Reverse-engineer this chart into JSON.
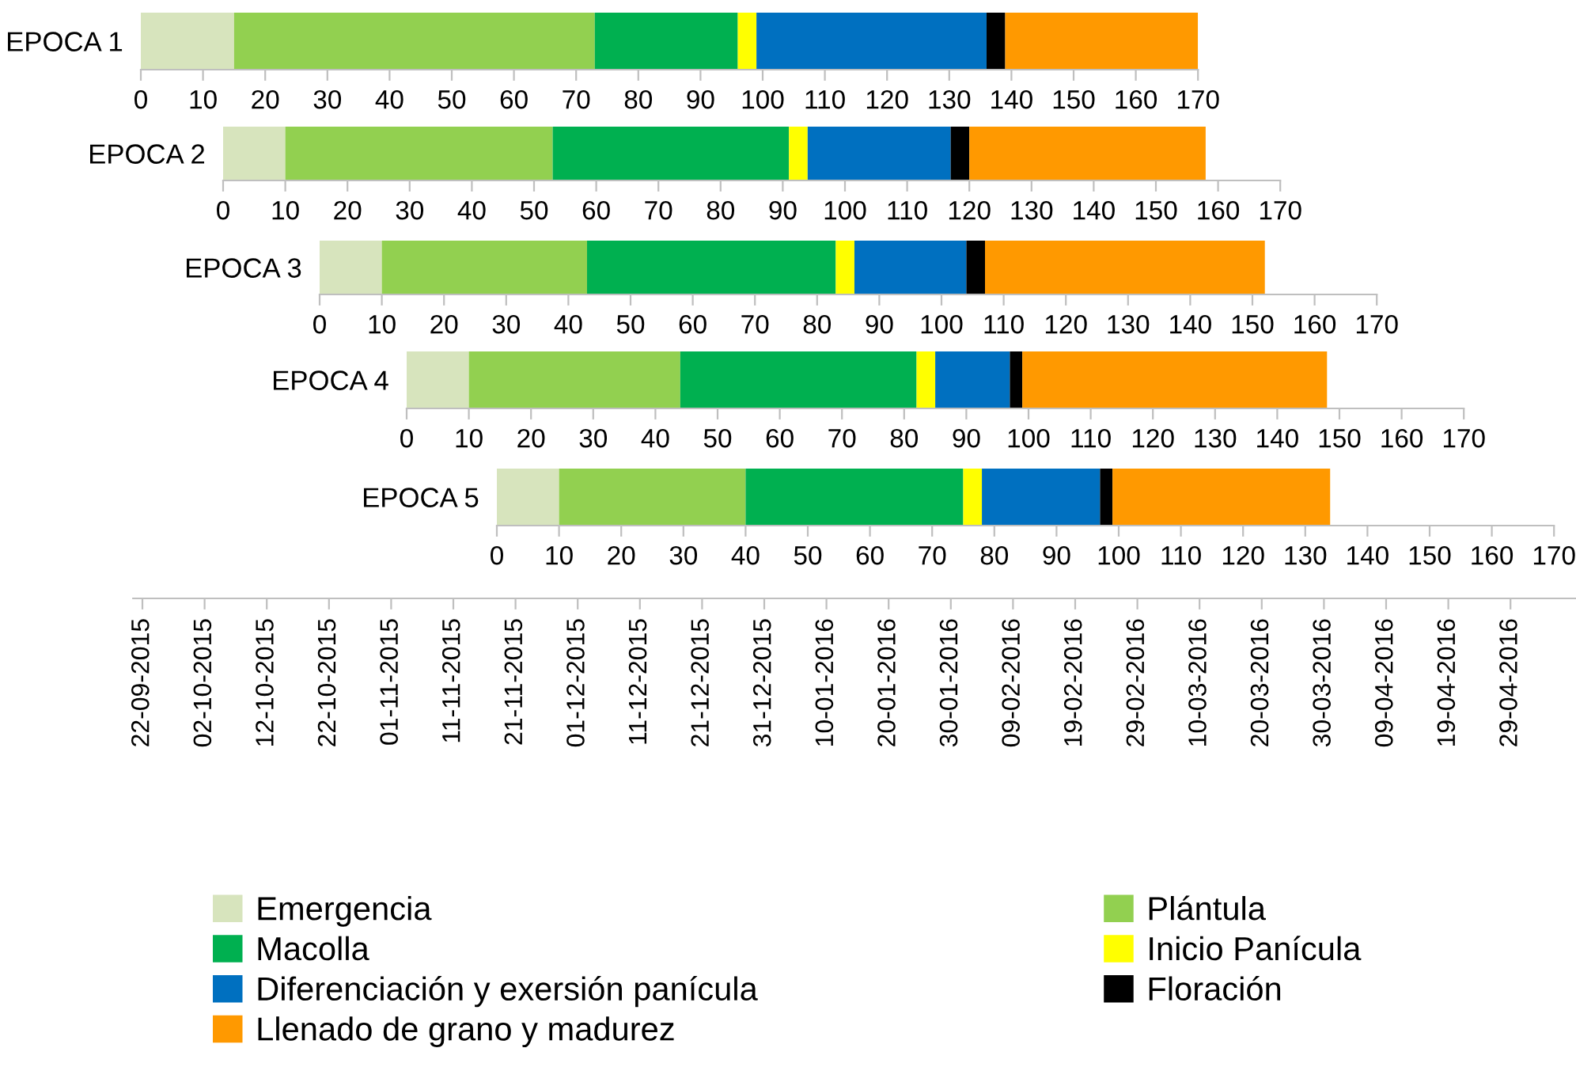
{
  "chart_data": [
    {
      "type": "bar",
      "orientation": "horizontal",
      "stacked": true,
      "categories": [
        "EPOCA 1"
      ],
      "xlim": [
        0,
        170
      ],
      "xticks": [
        0,
        10,
        20,
        30,
        40,
        50,
        60,
        70,
        80,
        90,
        100,
        110,
        120,
        130,
        140,
        150,
        160,
        170
      ],
      "legend": "bottom",
      "series": [
        {
          "name": "Emergencia",
          "color": "#d7e4bd",
          "values": [
            15
          ]
        },
        {
          "name": "Plántula",
          "color": "#92d050",
          "values": [
            58
          ]
        },
        {
          "name": "Macolla",
          "color": "#00b050",
          "values": [
            23
          ]
        },
        {
          "name": "Inicio Panícula",
          "color": "#ffff00",
          "values": [
            3
          ]
        },
        {
          "name": "Diferenciación y exersión panícula",
          "color": "#0070c0",
          "values": [
            37
          ]
        },
        {
          "name": "Floración",
          "color": "#000000",
          "values": [
            3
          ]
        },
        {
          "name": "Llenado de grano y madurez",
          "color": "#ff9900",
          "values": [
            31
          ]
        }
      ]
    },
    {
      "type": "bar",
      "orientation": "horizontal",
      "stacked": true,
      "categories": [
        "EPOCA 2"
      ],
      "xlim": [
        0,
        170
      ],
      "xticks": [
        0,
        10,
        20,
        30,
        40,
        50,
        60,
        70,
        80,
        90,
        100,
        110,
        120,
        130,
        140,
        150,
        160,
        170
      ],
      "series": [
        {
          "color": "#d7e4bd",
          "values": [
            10
          ]
        },
        {
          "color": "#92d050",
          "values": [
            43
          ]
        },
        {
          "color": "#00b050",
          "values": [
            38
          ]
        },
        {
          "color": "#ffff00",
          "values": [
            3
          ]
        },
        {
          "color": "#0070c0",
          "values": [
            23
          ]
        },
        {
          "color": "#000000",
          "values": [
            3
          ]
        },
        {
          "color": "#ff9900",
          "values": [
            38
          ]
        }
      ]
    },
    {
      "type": "bar",
      "orientation": "horizontal",
      "stacked": true,
      "categories": [
        "EPOCA 3"
      ],
      "xlim": [
        0,
        170
      ],
      "xticks": [
        0,
        10,
        20,
        30,
        40,
        50,
        60,
        70,
        80,
        90,
        100,
        110,
        120,
        130,
        140,
        150,
        160,
        170
      ],
      "series": [
        {
          "color": "#d7e4bd",
          "values": [
            10
          ]
        },
        {
          "color": "#92d050",
          "values": [
            33
          ]
        },
        {
          "color": "#00b050",
          "values": [
            40
          ]
        },
        {
          "color": "#ffff00",
          "values": [
            3
          ]
        },
        {
          "color": "#0070c0",
          "values": [
            18
          ]
        },
        {
          "color": "#000000",
          "values": [
            3
          ]
        },
        {
          "color": "#ff9900",
          "values": [
            45
          ]
        }
      ]
    },
    {
      "type": "bar",
      "orientation": "horizontal",
      "stacked": true,
      "categories": [
        "EPOCA 4"
      ],
      "xlim": [
        0,
        170
      ],
      "xticks": [
        0,
        10,
        20,
        30,
        40,
        50,
        60,
        70,
        80,
        90,
        100,
        110,
        120,
        130,
        140,
        150,
        160,
        170
      ],
      "series": [
        {
          "color": "#d7e4bd",
          "values": [
            10
          ]
        },
        {
          "color": "#92d050",
          "values": [
            34
          ]
        },
        {
          "color": "#00b050",
          "values": [
            38
          ]
        },
        {
          "color": "#ffff00",
          "values": [
            3
          ]
        },
        {
          "color": "#0070c0",
          "values": [
            12
          ]
        },
        {
          "color": "#000000",
          "values": [
            2
          ]
        },
        {
          "color": "#ff9900",
          "values": [
            49
          ]
        }
      ]
    },
    {
      "type": "bar",
      "orientation": "horizontal",
      "stacked": true,
      "categories": [
        "EPOCA 5"
      ],
      "xlim": [
        0,
        170
      ],
      "xticks": [
        0,
        10,
        20,
        30,
        40,
        50,
        60,
        70,
        80,
        90,
        100,
        110,
        120,
        130,
        140,
        150,
        160,
        170
      ],
      "series": [
        {
          "color": "#d7e4bd",
          "values": [
            10
          ]
        },
        {
          "color": "#92d050",
          "values": [
            30
          ]
        },
        {
          "color": "#00b050",
          "values": [
            35
          ]
        },
        {
          "color": "#ffff00",
          "values": [
            3
          ]
        },
        {
          "color": "#0070c0",
          "values": [
            19
          ]
        },
        {
          "color": "#000000",
          "values": [
            2
          ]
        },
        {
          "color": "#ff9900",
          "values": [
            35
          ]
        }
      ]
    },
    {
      "type": "other",
      "categories": [
        "22-09-2015",
        "02-10-2015",
        "12-10-2015",
        "22-10-2015",
        "01-11-2015",
        "11-11-2015",
        "21-11-2015",
        "01-12-2015",
        "11-12-2015",
        "21-12-2015",
        "31-12-2015",
        "10-01-2016",
        "20-01-2016",
        "30-01-2016",
        "09-02-2016",
        "19-02-2016",
        "29-02-2016",
        "10-03-2016",
        "20-03-2016",
        "30-03-2016",
        "09-04-2016",
        "19-04-2016",
        "29-04-2016"
      ]
    }
  ]
}
